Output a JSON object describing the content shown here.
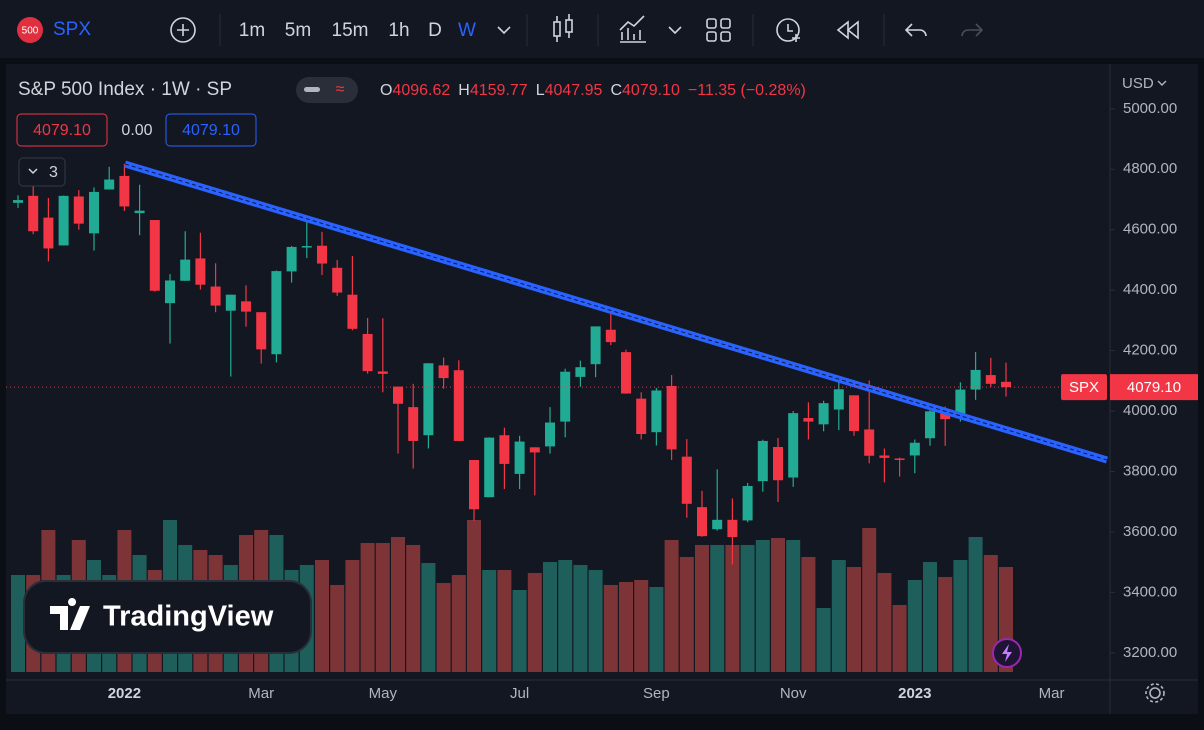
{
  "toolbar": {
    "badge": "500",
    "symbol": "SPX",
    "intervals": [
      "1m",
      "5m",
      "15m",
      "1h",
      "D",
      "W"
    ],
    "active_interval": 5
  },
  "legend": {
    "title": "S&P 500 Index · 1W · SP",
    "o_key": "O",
    "o": "4096.62",
    "h_key": "H",
    "h": "4159.77",
    "l_key": "L",
    "l": "4047.95",
    "c_key": "C",
    "c": "4079.10",
    "change": "−11.35 (−0.28%)",
    "bid": "4079.10",
    "spread": "0.00",
    "ask": "4079.10",
    "indicators": "3"
  },
  "currency": "USD",
  "last_label": {
    "symbol": "SPX",
    "price": "4079.10"
  },
  "branding": "TradingView",
  "chart_data": {
    "type": "candlestick",
    "categories": [
      null,
      null,
      null,
      null,
      null,
      null,
      null,
      "2022",
      null,
      null,
      null,
      null,
      null,
      null,
      null,
      null,
      "Mar",
      null,
      null,
      null,
      null,
      null,
      null,
      null,
      "May",
      null,
      null,
      null,
      null,
      null,
      null,
      null,
      null,
      "Jul",
      null,
      null,
      null,
      null,
      null,
      null,
      null,
      null,
      "Sep",
      null,
      null,
      null,
      null,
      null,
      null,
      null,
      null,
      "Nov",
      null,
      null,
      null,
      null,
      null,
      null,
      null,
      "2023",
      null,
      null,
      null,
      null,
      null,
      null,
      null,
      null,
      "Mar"
    ],
    "open": [
      4689,
      4712,
      4640,
      4548,
      4710,
      4588,
      4733,
      4778,
      4655,
      4632,
      4357,
      4431,
      4505,
      4412,
      4332,
      4363,
      4327,
      4188,
      4462,
      4541,
      4547,
      4474,
      4385,
      4255,
      4131,
      4081,
      4013,
      3920,
      4151,
      4135,
      3838,
      3715,
      3920,
      3792,
      3880,
      3883,
      3965,
      4113,
      4155,
      4269,
      4195,
      4041,
      3930,
      4083,
      3849,
      3682,
      3609,
      3640,
      3638,
      3768,
      3881,
      3780,
      3977,
      3956,
      4005,
      4052,
      3939,
      3853,
      3843,
      3853,
      3910,
      3999,
      3979,
      4071,
      4119,
      4096.62,
      null,
      null,
      null
    ],
    "high": [
      4714,
      4743,
      4705,
      4713,
      4731,
      4740,
      4808,
      4818,
      4749,
      4632,
      4453,
      4595,
      4590,
      4489,
      4385,
      4416,
      4327,
      4465,
      4546,
      4637,
      4593,
      4500,
      4513,
      4308,
      4307,
      4081,
      4090,
      4158,
      4177,
      4168,
      3838,
      3913,
      3945,
      3918,
      3880,
      4013,
      4140,
      4167,
      4280,
      4325,
      4203,
      4062,
      4076,
      4119,
      3907,
      3736,
      3807,
      3711,
      3762,
      3905,
      3911,
      4000,
      4029,
      4034,
      4100,
      4052,
      4101,
      3876,
      3846,
      3906,
      4003,
      4015,
      4095,
      4195,
      4176,
      4159.77,
      null,
      null,
      null
    ],
    "low": [
      4672,
      4585,
      4495,
      4548,
      4600,
      4531,
      4733,
      4662,
      4582,
      4395,
      4223,
      4431,
      4402,
      4327,
      4114,
      4279,
      4157,
      4161,
      4425,
      4506,
      4450,
      4381,
      4267,
      4124,
      4062,
      3859,
      3810,
      3876,
      4074,
      3900,
      3637,
      3715,
      3742,
      3742,
      3721,
      3859,
      3913,
      4080,
      4112,
      4218,
      4057,
      3906,
      3886,
      3838,
      3647,
      3584,
      3604,
      3492,
      3632,
      3733,
      3699,
      3749,
      3906,
      3933,
      3937,
      3918,
      3827,
      3764,
      3783,
      3794,
      3885,
      3885,
      3965,
      4037,
      4080,
      4047.95,
      null,
      null,
      null
    ],
    "close": [
      4698,
      4595,
      4538,
      4712,
      4620,
      4725,
      4766,
      4677,
      4663,
      4398,
      4432,
      4501,
      4418,
      4349,
      4385,
      4329,
      4204,
      4463,
      4543,
      4546,
      4488,
      4392,
      4272,
      4132,
      4123,
      4024,
      3901,
      4158,
      4109,
      3901,
      3675,
      3912,
      3825,
      3899,
      3863,
      3962,
      4130,
      4145,
      4280,
      4228,
      4058,
      3924,
      4068,
      3873,
      3693,
      3586,
      3640,
      3583,
      3752,
      3901,
      3771,
      3993,
      3965,
      4026,
      4072,
      3934,
      3852,
      3845,
      3840,
      3895,
      3999,
      3973,
      4071,
      4136,
      4090,
      4079.1,
      null,
      null,
      null
    ],
    "volume": [
      97,
      97,
      142,
      97,
      132,
      112,
      97,
      142,
      117,
      102,
      152,
      127,
      122,
      117,
      107,
      137,
      142,
      137,
      102,
      107,
      112,
      87,
      112,
      129,
      129,
      135,
      127,
      109,
      89,
      97,
      152,
      102,
      102,
      82,
      99,
      110,
      112,
      107,
      102,
      87,
      90,
      92,
      85,
      132,
      115,
      127,
      127,
      127,
      127,
      132,
      134,
      132,
      115,
      64,
      112,
      105,
      144,
      99,
      67,
      92,
      110,
      95,
      112,
      135,
      117,
      105,
      null,
      null,
      null
    ],
    "up_color": "#22ab94",
    "down_color": "#f23645",
    "up_volume_color": "#1f5f5b",
    "down_volume_color": "#7c3437",
    "ylim": [
      3110,
      5145
    ],
    "yticks": [
      {
        "value": 3200,
        "label": "3200.00"
      },
      {
        "value": 3400,
        "label": "3400.00"
      },
      {
        "value": 3600,
        "label": "3600.00"
      },
      {
        "value": 3800,
        "label": "3800.00"
      },
      {
        "value": 4000,
        "label": "4000.00"
      },
      {
        "value": 4200,
        "label": "4200.00"
      },
      {
        "value": 4400,
        "label": "4400.00"
      },
      {
        "value": 4600,
        "label": "4600.00"
      },
      {
        "value": 4800,
        "label": "4800.00"
      },
      {
        "value": 5000,
        "label": "5000.00"
      }
    ],
    "grid": false
  }
}
